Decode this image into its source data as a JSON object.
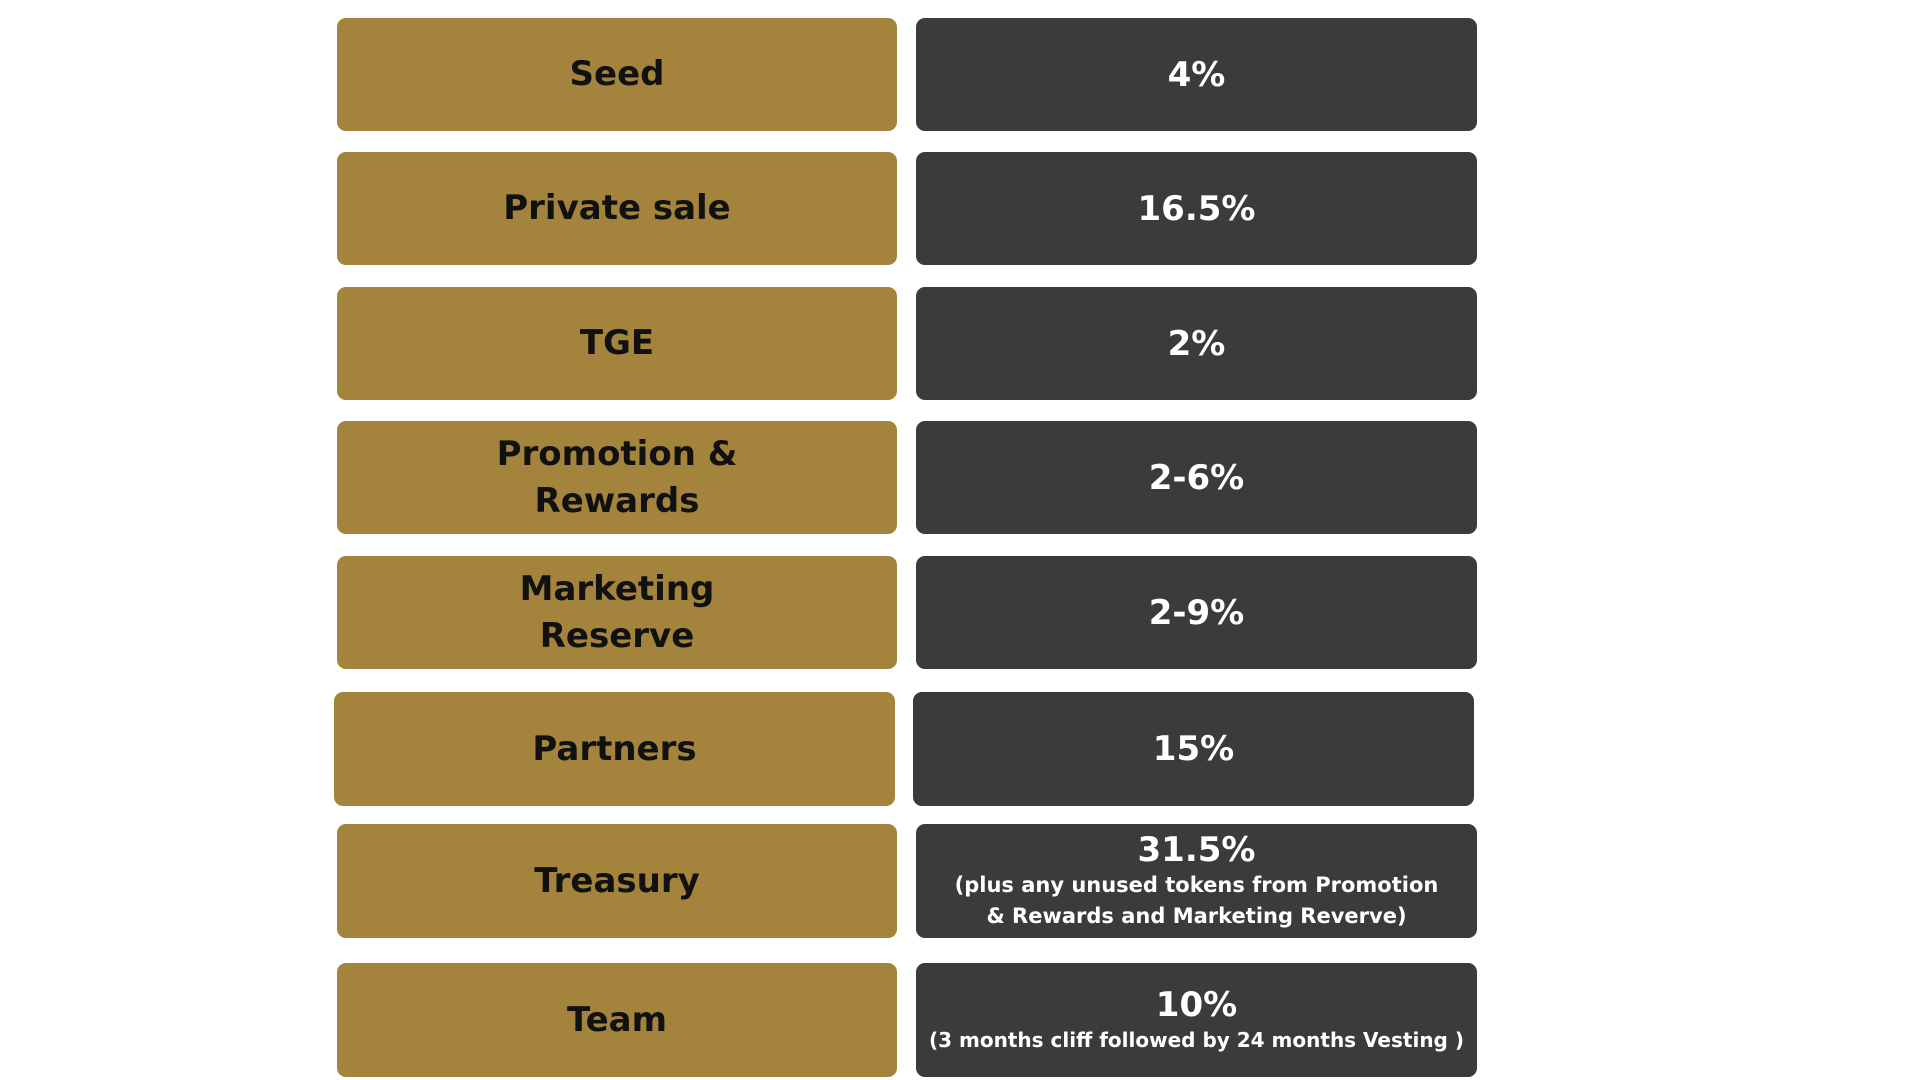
{
  "colors": {
    "label_bg": "#a4843c",
    "value_bg": "#3b3b3b",
    "label_text": "#111111",
    "value_text": "#ffffff"
  },
  "rows": [
    {
      "label": "Seed",
      "value": "4%",
      "note": ""
    },
    {
      "label": "Private sale",
      "value": "16.5%",
      "note": ""
    },
    {
      "label": "TGE",
      "value": "2%",
      "note": ""
    },
    {
      "label": "Promotion & Rewards",
      "value": "2-6%",
      "note": ""
    },
    {
      "label": "Marketing Reserve",
      "value": "2-9%",
      "note": ""
    },
    {
      "label": "Partners",
      "value": "15%",
      "note": ""
    },
    {
      "label": "Treasury",
      "value": "31.5%",
      "note": "(plus any unused tokens from Promotion & Rewards and Marketing Reverve)"
    },
    {
      "label": "Team",
      "value": "10%",
      "note": "(3 months cliff followed by 24 months Vesting )"
    }
  ]
}
